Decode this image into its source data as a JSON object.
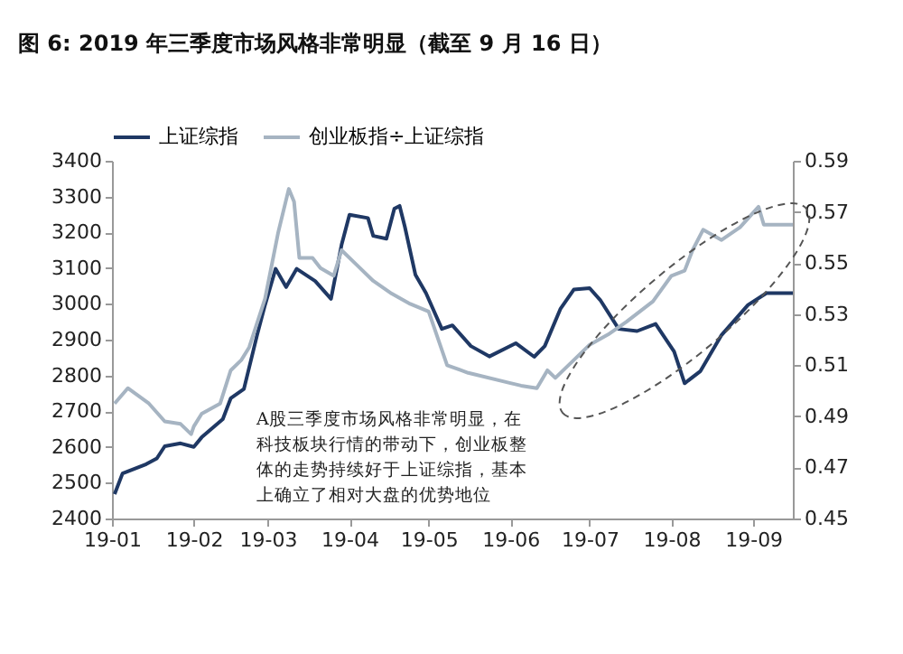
{
  "chart_data": {
    "type": "line",
    "title": "图 6: 2019 年三季度市场风格非常明显（截至 9 月 16 日）",
    "legend": "top",
    "grid": false,
    "line_style": "solid",
    "marker": "none",
    "xlim": [
      "2019-01-01",
      "2019-09-16"
    ],
    "xticks": [
      {
        "value": "2019-01-01",
        "label": "19-01"
      },
      {
        "value": "2019-02-01",
        "label": "19-02"
      },
      {
        "value": "2019-03-01",
        "label": "19-03"
      },
      {
        "value": "2019-04-01",
        "label": "19-04"
      },
      {
        "value": "2019-05-01",
        "label": "19-05"
      },
      {
        "value": "2019-06-01",
        "label": "19-06"
      },
      {
        "value": "2019-07-01",
        "label": "19-07"
      },
      {
        "value": "2019-08-01",
        "label": "19-08"
      },
      {
        "value": "2019-09-01",
        "label": "19-09"
      }
    ],
    "ylim": [
      2400,
      3400
    ],
    "yticks": [
      2400,
      2500,
      2600,
      2700,
      2800,
      2900,
      3000,
      3100,
      3200,
      3300,
      3400
    ],
    "y2lim": [
      0.45,
      0.59
    ],
    "y2ticks": [
      0.45,
      0.47,
      0.49,
      0.51,
      0.53,
      0.55,
      0.57,
      0.59
    ],
    "annotations": [
      "A股三季度市场风格非常明显，在科技板块行情的带动下，创业板整体的走势持续好于上证综指，基本上确立了相对大盘的优势地位"
    ],
    "series": [
      {
        "name": "上证综指",
        "color": "#1f3864",
        "x": [
          "2019-01-02",
          "2019-01-05",
          "2019-01-14",
          "2019-01-18",
          "2019-01-21",
          "2019-01-27",
          "2019-02-01",
          "2019-02-04",
          "2019-02-12",
          "2019-02-15",
          "2019-02-20",
          "2019-02-25",
          "2019-02-28",
          "2019-03-04",
          "2019-03-08",
          "2019-03-12",
          "2019-03-19",
          "2019-03-25",
          "2019-03-29",
          "2019-04-01",
          "2019-04-08",
          "2019-04-10",
          "2019-04-15",
          "2019-04-18",
          "2019-04-20",
          "2019-04-22",
          "2019-04-26",
          "2019-04-30",
          "2019-05-06",
          "2019-05-10",
          "2019-05-17",
          "2019-05-24",
          "2019-06-03",
          "2019-06-10",
          "2019-06-14",
          "2019-06-20",
          "2019-06-25",
          "2019-07-01",
          "2019-07-05",
          "2019-07-12",
          "2019-07-19",
          "2019-07-26",
          "2019-08-02",
          "2019-08-06",
          "2019-08-12",
          "2019-08-20",
          "2019-08-30",
          "2019-09-06",
          "2019-09-16"
        ],
        "values": [
          2468,
          2526,
          2552,
          2568,
          2602,
          2610,
          2600,
          2627,
          2678,
          2736,
          2762,
          2913,
          2997,
          3098,
          3047,
          3098,
          3064,
          3014,
          3165,
          3249,
          3240,
          3190,
          3182,
          3266,
          3274,
          3215,
          3081,
          3030,
          2930,
          2940,
          2882,
          2853,
          2890,
          2852,
          2882,
          2987,
          3040,
          3044,
          3011,
          2930,
          2924,
          2944,
          2867,
          2778,
          2812,
          2913,
          2997,
          3030,
          3030
        ]
      },
      {
        "name": "创业板指÷上证综指",
        "color": "#a6b4c2",
        "axis": "y2",
        "x": [
          "2019-01-02",
          "2019-01-07",
          "2019-01-11",
          "2019-01-15",
          "2019-01-21",
          "2019-01-27",
          "2019-01-31",
          "2019-02-01",
          "2019-02-04",
          "2019-02-11",
          "2019-02-15",
          "2019-02-19",
          "2019-02-22",
          "2019-02-28",
          "2019-03-05",
          "2019-03-09",
          "2019-03-11",
          "2019-03-13",
          "2019-03-18",
          "2019-03-21",
          "2019-03-26",
          "2019-03-29",
          "2019-04-03",
          "2019-04-10",
          "2019-04-17",
          "2019-04-24",
          "2019-05-01",
          "2019-05-08",
          "2019-05-16",
          "2019-06-01",
          "2019-06-05",
          "2019-06-11",
          "2019-06-15",
          "2019-06-18",
          "2019-06-25",
          "2019-07-01",
          "2019-07-08",
          "2019-07-15",
          "2019-07-25",
          "2019-08-01",
          "2019-08-06",
          "2019-08-09",
          "2019-08-13",
          "2019-08-20",
          "2019-08-27",
          "2019-09-03",
          "2019-09-05",
          "2019-09-16"
        ],
        "values": [
          0.495,
          0.501,
          0.498,
          0.495,
          0.488,
          0.487,
          0.483,
          0.486,
          0.491,
          0.495,
          0.508,
          0.512,
          0.517,
          0.536,
          0.562,
          0.579,
          0.574,
          0.552,
          0.552,
          0.548,
          0.545,
          0.555,
          0.55,
          0.543,
          0.538,
          0.534,
          0.531,
          0.51,
          0.507,
          0.503,
          0.502,
          0.501,
          0.508,
          0.505,
          0.512,
          0.518,
          0.522,
          0.527,
          0.535,
          0.545,
          0.547,
          0.555,
          0.563,
          0.559,
          0.564,
          0.572,
          0.565,
          0.565
        ]
      }
    ]
  }
}
